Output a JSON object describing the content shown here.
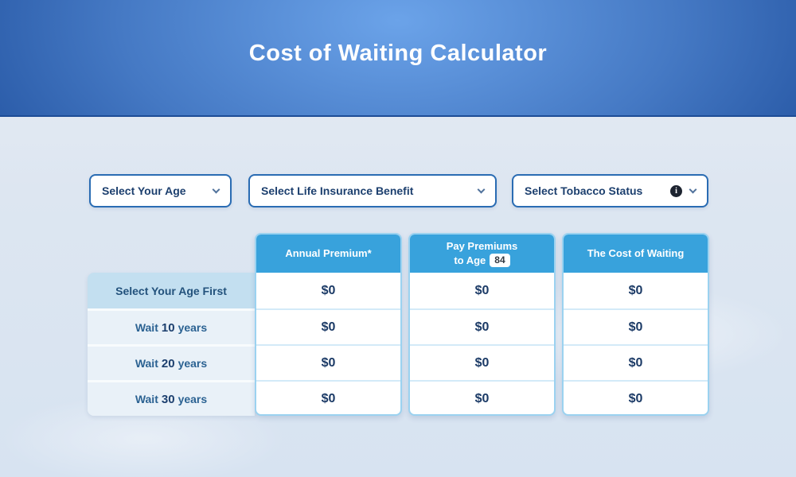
{
  "header": {
    "title": "Cost of Waiting Calculator"
  },
  "filters": {
    "age": {
      "label": "Select Your Age"
    },
    "benefit": {
      "label": "Select Life Insurance Benefit"
    },
    "tobacco": {
      "label": "Select Tobacco Status",
      "info_icon": "i"
    }
  },
  "table": {
    "row_labels": {
      "first": {
        "text": "Select Your Age First"
      },
      "wait10": {
        "prefix": "Wait",
        "strong": "10",
        "suffix": "years"
      },
      "wait20": {
        "prefix": "Wait",
        "strong": "20",
        "suffix": "years"
      },
      "wait30": {
        "prefix": "Wait",
        "strong": "30",
        "suffix": "years"
      }
    },
    "columns": [
      {
        "header": "Annual Premium*",
        "values": [
          "$0",
          "$0",
          "$0",
          "$0"
        ]
      },
      {
        "header_top": "Pay Premiums",
        "header_bottom": "to Age",
        "age_badge": "84",
        "values": [
          "$0",
          "$0",
          "$0",
          "$0"
        ]
      },
      {
        "header": "The Cost of Waiting",
        "values": [
          "$0",
          "$0",
          "$0",
          "$0"
        ]
      }
    ]
  },
  "colors": {
    "hero_center": "#6ba3e9",
    "hero_edge": "#164189",
    "table_header": "#38a2dc",
    "select_border": "#2a6cb3",
    "dark_text": "#1c3f6e",
    "row_first_bg": "#c3dff0",
    "row_bg": "#e9f1f8"
  }
}
